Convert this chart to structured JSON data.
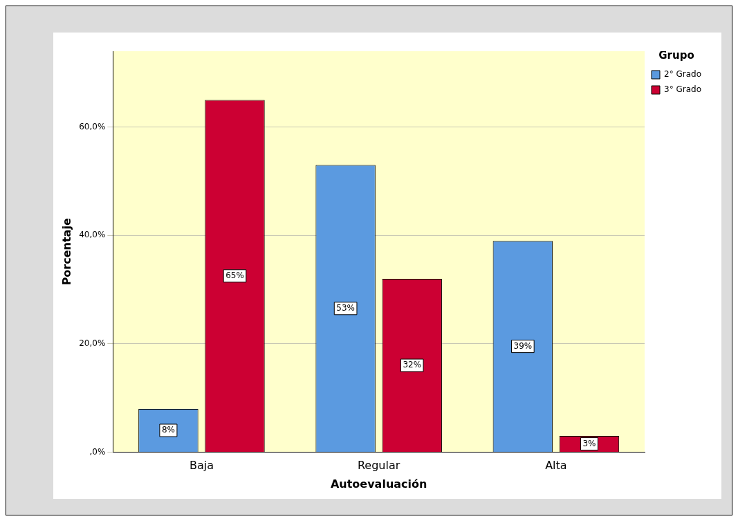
{
  "chart_data": {
    "type": "bar",
    "xlabel": "Autoevaluación",
    "ylabel": "Porcentaje",
    "legend_title": "Grupo",
    "categories": [
      "Baja",
      "Regular",
      "Alta"
    ],
    "series": [
      {
        "name": "2° Grado",
        "color": "#5b9ae0",
        "values": [
          8,
          53,
          39
        ],
        "value_labels": [
          "8%",
          "53%",
          "39%"
        ]
      },
      {
        "name": "3° Grado",
        "color": "#cc0033",
        "values": [
          65,
          32,
          3
        ],
        "value_labels": [
          "65%",
          "32%",
          "3%"
        ]
      }
    ],
    "ylim": [
      0,
      74
    ],
    "yticks": [
      {
        "value": 0,
        "label": ",0%"
      },
      {
        "value": 20,
        "label": "20,0%"
      },
      {
        "value": 40,
        "label": "40,0%"
      },
      {
        "value": 60,
        "label": "60,0%"
      }
    ],
    "grid": "y",
    "legend": "top right"
  }
}
